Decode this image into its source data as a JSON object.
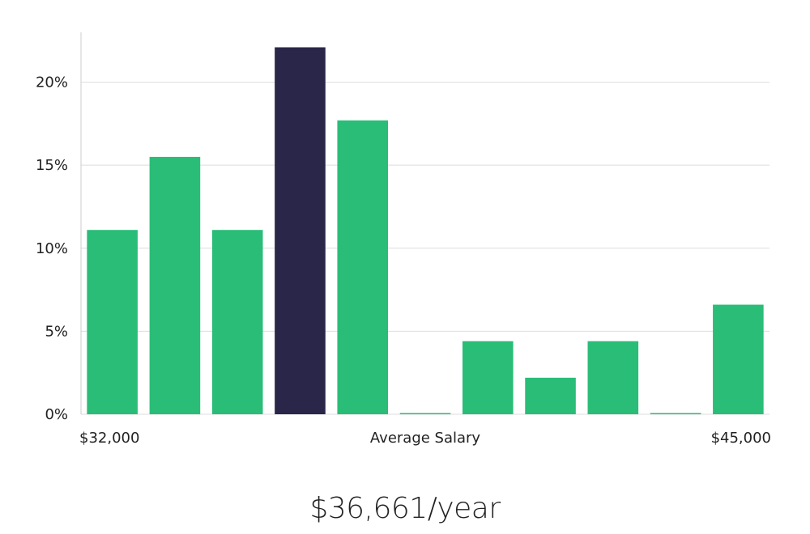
{
  "colors": {
    "bar": "#2abd77",
    "highlight": "#29264a",
    "grid": "#dddddd",
    "axis": "#cccccc",
    "text": "#222222"
  },
  "chart_data": {
    "type": "bar",
    "categories": [
      "1",
      "2",
      "3",
      "4",
      "5",
      "6",
      "7",
      "8",
      "9",
      "10",
      "11"
    ],
    "values": [
      11.1,
      15.5,
      11.1,
      22.1,
      17.7,
      0,
      4.4,
      2.2,
      4.4,
      0,
      6.6
    ],
    "highlight_index": 3,
    "ylim": [
      0,
      23
    ],
    "yticks": [
      0,
      5,
      10,
      15,
      20
    ],
    "ytick_labels": [
      "0%",
      "5%",
      "10%",
      "15%",
      "20%"
    ],
    "x_left_label": "$32,000",
    "x_center_label": "Average Salary",
    "x_right_label": "$45,000",
    "grid": true,
    "legend": "none"
  },
  "summary": {
    "salary": "$36,661/year"
  }
}
